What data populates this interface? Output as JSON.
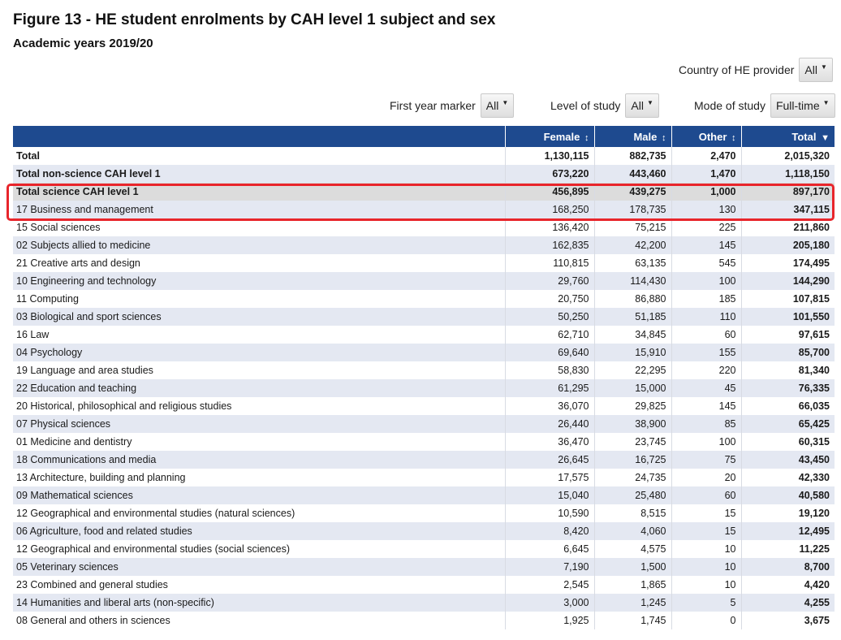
{
  "title": "Figure 13 - HE student enrolments by CAH level 1 subject and sex",
  "subtitle": "Academic years 2019/20",
  "filters": {
    "country": {
      "label": "Country of HE provider",
      "value": "All"
    },
    "first_year": {
      "label": "First year marker",
      "value": "All"
    },
    "level": {
      "label": "Level of study",
      "value": "All"
    },
    "mode": {
      "label": "Mode of study",
      "value": "Full-time"
    }
  },
  "icons": {
    "sort": "sort-updown-icon",
    "sort_desc": "sort-desc-icon",
    "dropdown": "caret-down-icon"
  },
  "colors": {
    "header": "#1e4a8f",
    "alt_row": "#e4e8f2",
    "highlight_row": "#dcdcdc",
    "annotation": "#e8252b"
  },
  "chart_data": {
    "type": "table",
    "columns": [
      "Female",
      "Male",
      "Other",
      "Total"
    ],
    "sort_glyphs": [
      "↕",
      "↕",
      "↕",
      "▼"
    ],
    "rows": [
      {
        "name": "Total",
        "values": [
          "1,130,115",
          "882,735",
          "2,470",
          "2,015,320"
        ]
      },
      {
        "name": "Total non-science CAH level 1",
        "values": [
          "673,220",
          "443,460",
          "1,470",
          "1,118,150"
        ]
      },
      {
        "name": "Total science CAH level 1",
        "values": [
          "456,895",
          "439,275",
          "1,000",
          "897,170"
        ]
      },
      {
        "name": "17 Business and management",
        "values": [
          "168,250",
          "178,735",
          "130",
          "347,115"
        ]
      },
      {
        "name": "15 Social sciences",
        "values": [
          "136,420",
          "75,215",
          "225",
          "211,860"
        ]
      },
      {
        "name": "02 Subjects allied to medicine",
        "values": [
          "162,835",
          "42,200",
          "145",
          "205,180"
        ]
      },
      {
        "name": "21 Creative arts and design",
        "values": [
          "110,815",
          "63,135",
          "545",
          "174,495"
        ]
      },
      {
        "name": "10 Engineering and technology",
        "values": [
          "29,760",
          "114,430",
          "100",
          "144,290"
        ]
      },
      {
        "name": "11 Computing",
        "values": [
          "20,750",
          "86,880",
          "185",
          "107,815"
        ]
      },
      {
        "name": "03 Biological and sport sciences",
        "values": [
          "50,250",
          "51,185",
          "110",
          "101,550"
        ]
      },
      {
        "name": "16 Law",
        "values": [
          "62,710",
          "34,845",
          "60",
          "97,615"
        ]
      },
      {
        "name": "04 Psychology",
        "values": [
          "69,640",
          "15,910",
          "155",
          "85,700"
        ]
      },
      {
        "name": "19 Language and area studies",
        "values": [
          "58,830",
          "22,295",
          "220",
          "81,340"
        ]
      },
      {
        "name": "22 Education and teaching",
        "values": [
          "61,295",
          "15,000",
          "45",
          "76,335"
        ]
      },
      {
        "name": "20 Historical, philosophical and religious studies",
        "values": [
          "36,070",
          "29,825",
          "145",
          "66,035"
        ]
      },
      {
        "name": "07 Physical sciences",
        "values": [
          "26,440",
          "38,900",
          "85",
          "65,425"
        ]
      },
      {
        "name": "01 Medicine and dentistry",
        "values": [
          "36,470",
          "23,745",
          "100",
          "60,315"
        ]
      },
      {
        "name": "18 Communications and media",
        "values": [
          "26,645",
          "16,725",
          "75",
          "43,450"
        ]
      },
      {
        "name": "13 Architecture, building and planning",
        "values": [
          "17,575",
          "24,735",
          "20",
          "42,330"
        ]
      },
      {
        "name": "09 Mathematical sciences",
        "values": [
          "15,040",
          "25,480",
          "60",
          "40,580"
        ]
      },
      {
        "name": "12 Geographical and environmental studies (natural sciences)",
        "values": [
          "10,590",
          "8,515",
          "15",
          "19,120"
        ]
      },
      {
        "name": "06 Agriculture, food and related studies",
        "values": [
          "8,420",
          "4,060",
          "15",
          "12,495"
        ]
      },
      {
        "name": "12 Geographical and environmental studies (social sciences)",
        "values": [
          "6,645",
          "4,575",
          "10",
          "11,225"
        ]
      },
      {
        "name": "05 Veterinary sciences",
        "values": [
          "7,190",
          "1,500",
          "10",
          "8,700"
        ]
      },
      {
        "name": "23 Combined and general studies",
        "values": [
          "2,545",
          "1,865",
          "10",
          "4,420"
        ]
      },
      {
        "name": "14 Humanities and liberal arts (non-specific)",
        "values": [
          "3,000",
          "1,245",
          "5",
          "4,255"
        ]
      },
      {
        "name": "08 General and others in sciences",
        "values": [
          "1,925",
          "1,745",
          "0",
          "3,675"
        ]
      }
    ],
    "bold_rows": [
      0,
      1,
      2
    ],
    "highlighted_rows": [
      2,
      3
    ]
  }
}
